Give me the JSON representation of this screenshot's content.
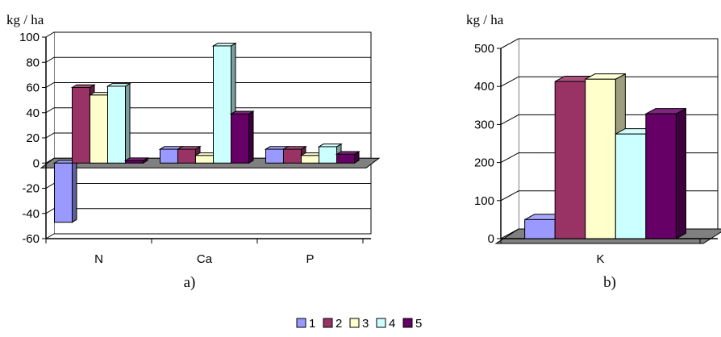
{
  "colors": {
    "1": "#9999ff",
    "2": "#993366",
    "3": "#ffffcc",
    "4": "#ccffff",
    "5": "#660066",
    "floor": "#808080",
    "wall": "#ffffff",
    "grid": "#000000"
  },
  "chart_data": [
    {
      "type": "bar",
      "subtype": "3d-clustered-column",
      "ylabel": "kg / ha",
      "caption": "a)",
      "categories": [
        "N",
        "Ca",
        "P"
      ],
      "ylim": [
        -60,
        100
      ],
      "yticks": [
        -60,
        -40,
        -20,
        0,
        20,
        40,
        60,
        80,
        100
      ],
      "tick_labels": [
        "-60",
        "-40",
        "-20",
        "0",
        "20",
        "40",
        "60",
        "80",
        "100"
      ],
      "grid": true,
      "series": [
        {
          "name": "1",
          "values": [
            -47,
            11,
            11
          ]
        },
        {
          "name": "2",
          "values": [
            60,
            11,
            11
          ]
        },
        {
          "name": "3",
          "values": [
            54,
            6,
            6
          ]
        },
        {
          "name": "4",
          "values": [
            61,
            93,
            13
          ]
        },
        {
          "name": "5",
          "values": [
            2,
            39,
            7
          ]
        }
      ]
    },
    {
      "type": "bar",
      "subtype": "3d-clustered-column",
      "ylabel": "kg / ha",
      "caption": "b)",
      "categories": [
        "K"
      ],
      "ylim": [
        0,
        500
      ],
      "yticks": [
        0,
        100,
        200,
        300,
        400,
        500
      ],
      "tick_labels": [
        "0",
        "100",
        "200",
        "300",
        "400",
        "500"
      ],
      "grid": true,
      "series": [
        {
          "name": "1",
          "values": [
            50
          ]
        },
        {
          "name": "2",
          "values": [
            413
          ]
        },
        {
          "name": "3",
          "values": [
            419
          ]
        },
        {
          "name": "4",
          "values": [
            275
          ]
        },
        {
          "name": "5",
          "values": [
            328
          ]
        }
      ]
    }
  ],
  "legend": {
    "position": "bottom-center",
    "items": [
      "1",
      "2",
      "3",
      "4",
      "5"
    ]
  }
}
